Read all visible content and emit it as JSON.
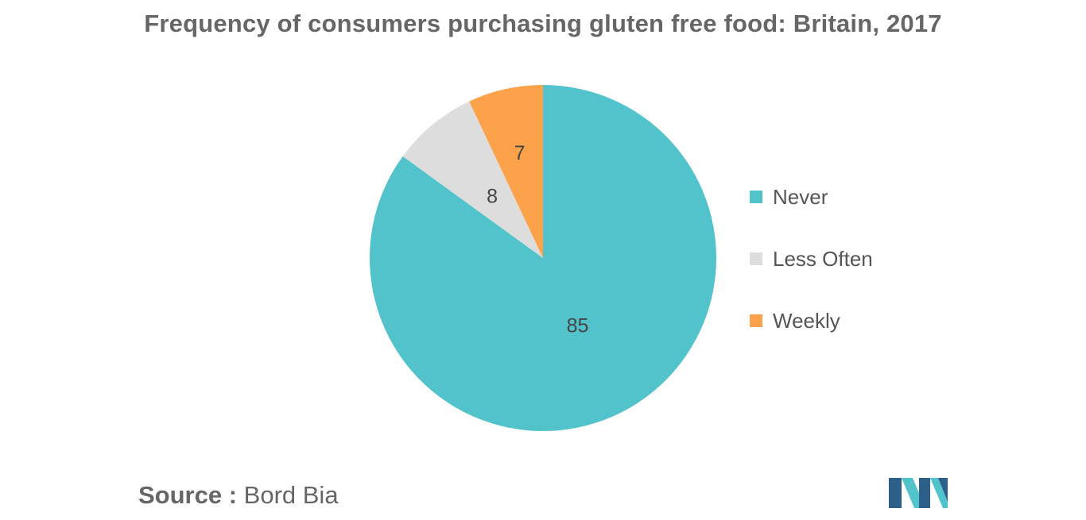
{
  "chart_data": {
    "type": "pie",
    "title": "Frequency of consumers purchasing gluten free food: Britain, 2017",
    "slices": [
      {
        "label": "Never",
        "value": 85,
        "value_label": "85",
        "color": "#52c3ca"
      },
      {
        "label": "Less Often",
        "value": 8,
        "value_label": "8",
        "color": "#dddddd"
      },
      {
        "label": "Weekly",
        "value": 7,
        "value_label": "7",
        "color": "#fba24a"
      }
    ],
    "legend_position": "right",
    "start_angle": "12 o'clock, clockwise"
  },
  "source": {
    "label": "Source :",
    "value": "Bord Bia"
  },
  "logo": {
    "icon": "mordor-logo-icon",
    "colors": [
      "#2c5f8a",
      "#52c3ca"
    ]
  }
}
